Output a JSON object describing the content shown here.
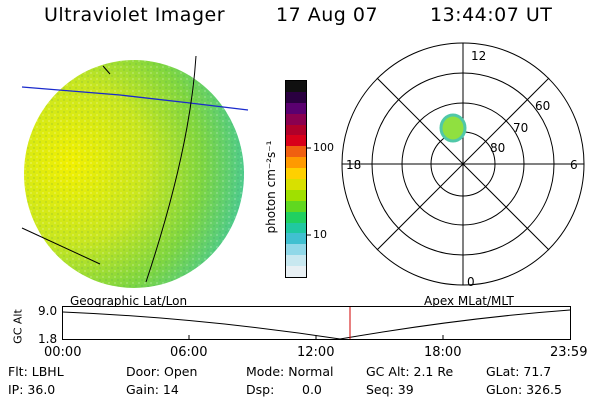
{
  "header": {
    "title": "Ultraviolet Imager",
    "date": "17 Aug 07",
    "time": "13:44:07 UT"
  },
  "colorbar": {
    "unit_label": "photon cm⁻²s⁻¹",
    "ticks": [
      "100",
      "10"
    ],
    "colors": [
      "#101010",
      "#2a0040",
      "#5a0070",
      "#8a0050",
      "#b0002a",
      "#d8001a",
      "#f06010",
      "#ff9a00",
      "#ffd000",
      "#d8e000",
      "#a0e000",
      "#60d820",
      "#20d060",
      "#20c8a0",
      "#40c0d0",
      "#90d8e8",
      "#c8e8f0",
      "#e8f0f4"
    ]
  },
  "globe": {
    "label": "Geographic Lat/Lon"
  },
  "polar": {
    "label": "Apex MLat/MLT",
    "mlt_labels": {
      "top": "12",
      "right": "6",
      "bottom": "0",
      "left": "18"
    },
    "lat_labels": [
      "60",
      "70",
      "80"
    ]
  },
  "timeline": {
    "ylabel": "GC Alt",
    "yticks": [
      "9.0",
      "1.8"
    ],
    "xticks": [
      "00:00",
      "06:00",
      "12:00",
      "18:00",
      "23:59"
    ],
    "marker_color": "#d00000"
  },
  "info": {
    "filter": "Flt: LBHL",
    "door": "Door: Open",
    "mode": "Mode: Normal",
    "gc_alt": "GC Alt: 2.1 Re",
    "glat": "GLat: 71.7",
    "ip": "IP: 36.0",
    "gain": "Gain: 14",
    "dsp": "Dsp:",
    "dsp_val": "0.0",
    "seq": "Seq: 39",
    "glon": "GLon: 326.5"
  }
}
